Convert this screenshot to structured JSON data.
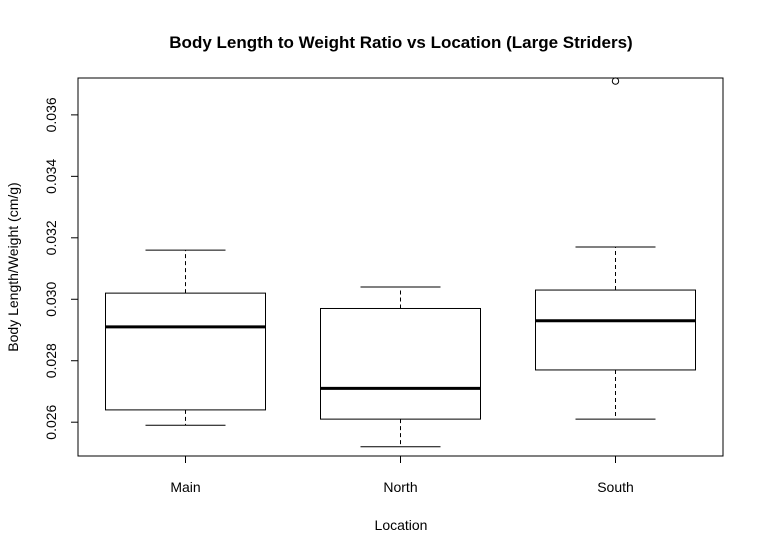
{
  "chart_data": {
    "type": "boxplot",
    "title": "Body Length to Weight Ratio vs Location (Large Striders)",
    "xlabel": "Location",
    "ylabel": "Body Length/Weight (cm/g)",
    "ylim": [
      0.0249,
      0.0372
    ],
    "y_ticks": [
      0.026,
      0.028,
      0.03,
      0.032,
      0.034,
      0.036
    ],
    "y_tick_labels": [
      "0.026",
      "0.028",
      "0.030",
      "0.032",
      "0.034",
      "0.036"
    ],
    "categories": [
      "Main",
      "North",
      "South"
    ],
    "boxes": [
      {
        "category": "Main",
        "whisker_low": 0.0259,
        "q1": 0.0264,
        "median": 0.0291,
        "q3": 0.0302,
        "whisker_high": 0.0316,
        "outliers": []
      },
      {
        "category": "North",
        "whisker_low": 0.0252,
        "q1": 0.0261,
        "median": 0.0271,
        "q3": 0.0297,
        "whisker_high": 0.0304,
        "outliers": []
      },
      {
        "category": "South",
        "whisker_low": 0.0261,
        "q1": 0.0277,
        "median": 0.0293,
        "q3": 0.0303,
        "whisker_high": 0.0317,
        "outliers": [
          0.0371
        ]
      }
    ],
    "grid": false,
    "legend": "none"
  }
}
